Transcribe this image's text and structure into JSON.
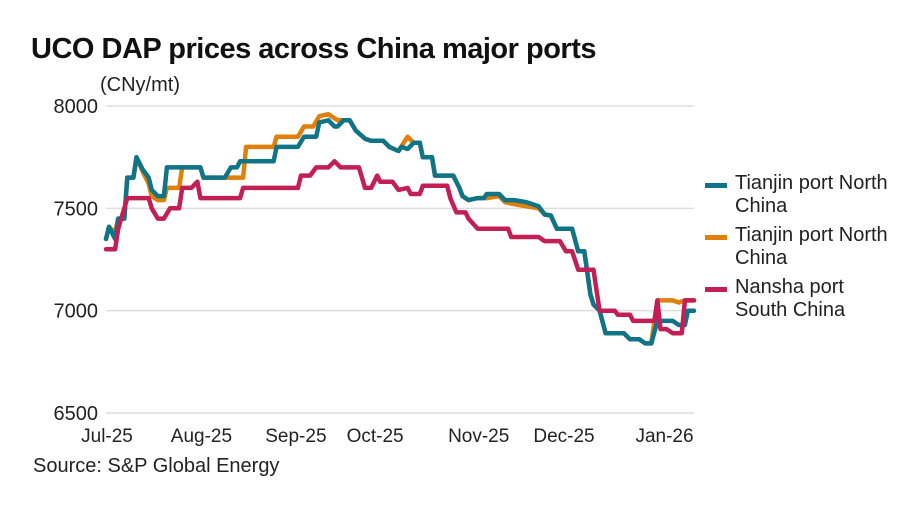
{
  "title": "UCO DAP prices across China major ports",
  "unit_label": "(CNy/mt)",
  "source": "Source: S&P Global Energy",
  "chart_data": {
    "type": "line",
    "title": "UCO DAP prices across China major ports",
    "xlabel": "",
    "ylabel": "(CNy/mt)",
    "ylim": [
      6500,
      8000
    ],
    "yticks": [
      "8000",
      "7500",
      "7000",
      "6500"
    ],
    "ytick_values": [
      8000,
      7500,
      7000,
      6500
    ],
    "xticks": [
      "Jul-25",
      "Aug-25",
      "Sep-25",
      "Oct-25",
      "Nov-25",
      "Dec-25",
      "Jan-26"
    ],
    "xtick_days": [
      0,
      31,
      62,
      88,
      122,
      150,
      183
    ],
    "xlim_days": [
      0,
      193
    ],
    "x_unit": "days since 2025-07-01",
    "grid": true,
    "legend": "right",
    "series": [
      {
        "name": "Tianjin port North China",
        "color": "#0f7488",
        "points": [
          [
            0,
            7350
          ],
          [
            1,
            7410
          ],
          [
            3,
            7350
          ],
          [
            4,
            7450
          ],
          [
            6,
            7450
          ],
          [
            7,
            7650
          ],
          [
            9,
            7650
          ],
          [
            10,
            7750
          ],
          [
            12,
            7690
          ],
          [
            14,
            7650
          ],
          [
            15,
            7590
          ],
          [
            17,
            7560
          ],
          [
            19,
            7560
          ],
          [
            20,
            7700
          ],
          [
            31,
            7700
          ],
          [
            32,
            7650
          ],
          [
            39,
            7650
          ],
          [
            41,
            7700
          ],
          [
            43,
            7700
          ],
          [
            44,
            7730
          ],
          [
            55,
            7730
          ],
          [
            56,
            7800
          ],
          [
            63,
            7800
          ],
          [
            65,
            7850
          ],
          [
            69,
            7850
          ],
          [
            70,
            7920
          ],
          [
            73,
            7930
          ],
          [
            75,
            7900
          ],
          [
            76,
            7900
          ],
          [
            78,
            7930
          ],
          [
            80,
            7930
          ],
          [
            82,
            7880
          ],
          [
            85,
            7840
          ],
          [
            87,
            7830
          ],
          [
            91,
            7830
          ],
          [
            93,
            7800
          ],
          [
            96,
            7780
          ],
          [
            97,
            7800
          ],
          [
            99,
            7790
          ],
          [
            101,
            7820
          ],
          [
            103,
            7820
          ],
          [
            104,
            7750
          ],
          [
            107,
            7750
          ],
          [
            108,
            7660
          ],
          [
            114,
            7660
          ],
          [
            116,
            7600
          ],
          [
            117,
            7560
          ],
          [
            119,
            7540
          ],
          [
            122,
            7550
          ],
          [
            124,
            7550
          ],
          [
            125,
            7570
          ],
          [
            129,
            7570
          ],
          [
            131,
            7540
          ],
          [
            134,
            7540
          ],
          [
            138,
            7530
          ],
          [
            142,
            7510
          ],
          [
            144,
            7470
          ],
          [
            146,
            7465
          ],
          [
            148,
            7400
          ],
          [
            153,
            7400
          ],
          [
            155,
            7290
          ],
          [
            157,
            7290
          ],
          [
            159,
            7080
          ],
          [
            160,
            7030
          ],
          [
            162,
            7000
          ],
          [
            164,
            6890
          ],
          [
            170,
            6890
          ],
          [
            172,
            6860
          ],
          [
            175,
            6860
          ],
          [
            177,
            6840
          ],
          [
            179,
            6840
          ],
          [
            181,
            6950
          ],
          [
            186,
            6950
          ],
          [
            188,
            6930
          ],
          [
            190,
            6930
          ],
          [
            191,
            7000
          ],
          [
            193,
            7000
          ]
        ]
      },
      {
        "name": "Tianjin port North China",
        "color": "#e07f0a",
        "points": [
          [
            0,
            7350
          ],
          [
            1,
            7410
          ],
          [
            3,
            7380
          ],
          [
            4,
            7450
          ],
          [
            6,
            7450
          ],
          [
            7,
            7650
          ],
          [
            9,
            7650
          ],
          [
            10,
            7750
          ],
          [
            12,
            7680
          ],
          [
            14,
            7620
          ],
          [
            15,
            7560
          ],
          [
            17,
            7540
          ],
          [
            19,
            7540
          ],
          [
            20,
            7600
          ],
          [
            24,
            7600
          ],
          [
            25,
            7700
          ],
          [
            31,
            7700
          ],
          [
            32,
            7650
          ],
          [
            39,
            7650
          ],
          [
            41,
            7650
          ],
          [
            45,
            7650
          ],
          [
            46,
            7800
          ],
          [
            55,
            7800
          ],
          [
            56,
            7850
          ],
          [
            63,
            7850
          ],
          [
            65,
            7900
          ],
          [
            68,
            7900
          ],
          [
            70,
            7950
          ],
          [
            73,
            7960
          ],
          [
            75,
            7940
          ],
          [
            76,
            7930
          ],
          [
            80,
            7930
          ],
          [
            82,
            7880
          ],
          [
            85,
            7840
          ],
          [
            87,
            7830
          ],
          [
            91,
            7830
          ],
          [
            93,
            7800
          ],
          [
            96,
            7780
          ],
          [
            99,
            7850
          ],
          [
            101,
            7820
          ],
          [
            103,
            7820
          ],
          [
            104,
            7750
          ],
          [
            107,
            7750
          ],
          [
            108,
            7660
          ],
          [
            114,
            7660
          ],
          [
            116,
            7600
          ],
          [
            117,
            7560
          ],
          [
            119,
            7540
          ],
          [
            122,
            7550
          ],
          [
            124,
            7550
          ],
          [
            125,
            7550
          ],
          [
            129,
            7560
          ],
          [
            131,
            7530
          ],
          [
            134,
            7520
          ],
          [
            138,
            7510
          ],
          [
            142,
            7500
          ],
          [
            144,
            7470
          ],
          [
            146,
            7465
          ],
          [
            148,
            7400
          ],
          [
            153,
            7400
          ],
          [
            155,
            7290
          ],
          [
            157,
            7290
          ],
          [
            159,
            7080
          ],
          [
            160,
            7030
          ],
          [
            162,
            7000
          ],
          [
            164,
            6890
          ],
          [
            170,
            6890
          ],
          [
            172,
            6860
          ],
          [
            175,
            6860
          ],
          [
            177,
            6840
          ],
          [
            179,
            6840
          ],
          [
            181,
            7050
          ],
          [
            186,
            7050
          ],
          [
            188,
            7040
          ],
          [
            190,
            7050
          ],
          [
            193,
            7050
          ]
        ]
      },
      {
        "name": "Nansha port South China",
        "color": "#c21f55",
        "points": [
          [
            0,
            7300
          ],
          [
            3,
            7300
          ],
          [
            4,
            7400
          ],
          [
            5,
            7450
          ],
          [
            7,
            7550
          ],
          [
            14,
            7550
          ],
          [
            15,
            7500
          ],
          [
            17,
            7450
          ],
          [
            19,
            7450
          ],
          [
            21,
            7500
          ],
          [
            24,
            7500
          ],
          [
            25,
            7600
          ],
          [
            28,
            7600
          ],
          [
            30,
            7630
          ],
          [
            31,
            7550
          ],
          [
            44,
            7550
          ],
          [
            45,
            7600
          ],
          [
            63,
            7600
          ],
          [
            64,
            7660
          ],
          [
            67,
            7660
          ],
          [
            69,
            7700
          ],
          [
            73,
            7700
          ],
          [
            75,
            7730
          ],
          [
            77,
            7700
          ],
          [
            83,
            7700
          ],
          [
            85,
            7600
          ],
          [
            87,
            7600
          ],
          [
            89,
            7660
          ],
          [
            90,
            7630
          ],
          [
            94,
            7630
          ],
          [
            96,
            7590
          ],
          [
            99,
            7600
          ],
          [
            100,
            7570
          ],
          [
            103,
            7570
          ],
          [
            104,
            7610
          ],
          [
            112,
            7610
          ],
          [
            113,
            7550
          ],
          [
            115,
            7480
          ],
          [
            118,
            7480
          ],
          [
            119,
            7450
          ],
          [
            122,
            7400
          ],
          [
            132,
            7400
          ],
          [
            133,
            7360
          ],
          [
            142,
            7360
          ],
          [
            144,
            7340
          ],
          [
            149,
            7340
          ],
          [
            151,
            7290
          ],
          [
            153,
            7290
          ],
          [
            155,
            7200
          ],
          [
            160,
            7200
          ],
          [
            161,
            7100
          ],
          [
            162,
            7000
          ],
          [
            167,
            7000
          ],
          [
            168,
            6980
          ],
          [
            172,
            6980
          ],
          [
            173,
            6950
          ],
          [
            180,
            6950
          ],
          [
            181,
            7050
          ],
          [
            182,
            6910
          ],
          [
            184,
            6910
          ],
          [
            186,
            6890
          ],
          [
            189,
            6890
          ],
          [
            190,
            7050
          ],
          [
            193,
            7050
          ]
        ]
      }
    ]
  }
}
